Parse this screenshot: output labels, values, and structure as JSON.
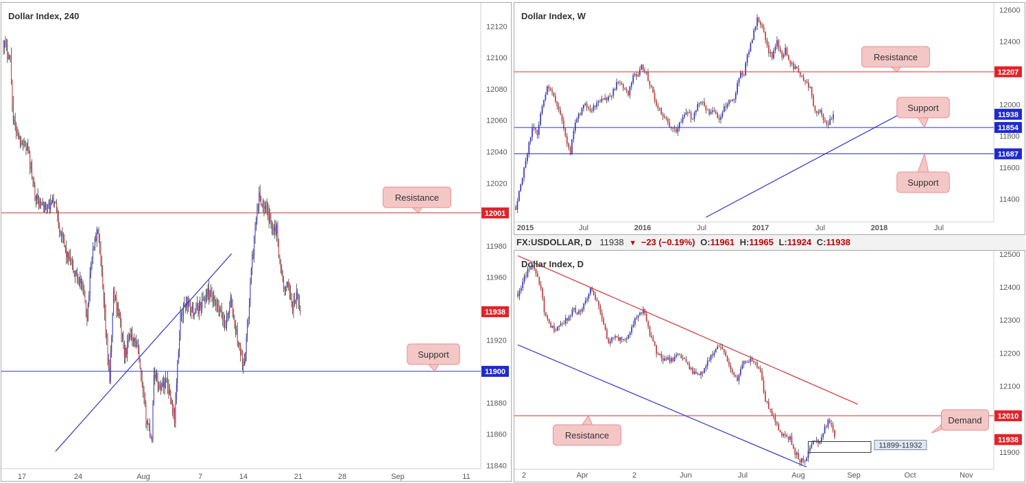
{
  "colors": {
    "bull": "#3232d2",
    "bear": "#d43131",
    "wick": "#333333",
    "resistance_line": "#d43131",
    "support_line": "#2b32c9",
    "tag_red": "#e0242a",
    "tag_blue": "#1f2acc",
    "callout_fill": "#f4c7c7",
    "callout_border": "#e88d8d",
    "axis_text": "#555555"
  },
  "infobar": {
    "symbol": "FX:USDOLLAR, D",
    "last": "11938",
    "change": "−23 (−0.19%)",
    "o_label": "O:",
    "o_value": "11961",
    "h_label": "H:",
    "h_value": "11965",
    "l_label": "L:",
    "l_value": "11924",
    "c_label": "C:",
    "c_value": "11938"
  },
  "chart_data": [
    {
      "id": "h4",
      "type": "candlestick",
      "title": "Dollar Index, 240",
      "ylim": [
        11838,
        12135
      ],
      "yticks": [
        12120,
        12100,
        12080,
        12060,
        12040,
        12020,
        11980,
        11960,
        11920,
        11880,
        11860,
        11840
      ],
      "xlabels": [
        "17",
        "24",
        "Aug",
        "7",
        "14",
        "21",
        "28",
        "Sep",
        "11"
      ],
      "bars": 165,
      "price_tags": [
        {
          "label": "12001",
          "value": 12001,
          "color": "red"
        },
        {
          "label": "11938",
          "value": 11938,
          "color": "red"
        },
        {
          "label": "11900",
          "value": 11900,
          "color": "blue"
        }
      ],
      "hlines": [
        {
          "value": 12001,
          "color": "red"
        },
        {
          "value": 11900,
          "color": "blue"
        }
      ],
      "trendlines": [
        {
          "color": "blue",
          "from": {
            "bar": 53,
            "value": 11849
          },
          "to": {
            "bar": 232,
            "value": 11975
          }
        }
      ],
      "callouts": [
        {
          "text": "Resistance",
          "value": 12001
        },
        {
          "text": "Support",
          "value": 11900
        }
      ],
      "path": [
        [
          0,
          12110
        ],
        [
          7,
          12100
        ],
        [
          10,
          12060
        ],
        [
          15,
          12050
        ],
        [
          21,
          12045
        ],
        [
          25,
          12040
        ],
        [
          30,
          12020
        ],
        [
          35,
          12008
        ],
        [
          45,
          12003
        ],
        [
          52,
          12010
        ],
        [
          56,
          11995
        ],
        [
          64,
          11975
        ],
        [
          70,
          11965
        ],
        [
          78,
          11958
        ],
        [
          82,
          11948
        ],
        [
          85,
          11935
        ],
        [
          90,
          11975
        ],
        [
          96,
          11990
        ],
        [
          100,
          11960
        ],
        [
          104,
          11925
        ],
        [
          108,
          11895
        ],
        [
          112,
          11950
        ],
        [
          118,
          11935
        ],
        [
          123,
          11910
        ],
        [
          130,
          11925
        ],
        [
          136,
          11915
        ],
        [
          140,
          11895
        ],
        [
          145,
          11870
        ],
        [
          151,
          11858
        ],
        [
          153,
          11900
        ],
        [
          159,
          11890
        ],
        [
          166,
          11895
        ],
        [
          171,
          11880
        ],
        [
          174,
          11870
        ],
        [
          180,
          11935
        ],
        [
          186,
          11945
        ],
        [
          192,
          11938
        ],
        [
          198,
          11940
        ],
        [
          208,
          11950
        ],
        [
          218,
          11940
        ],
        [
          226,
          11930
        ],
        [
          231,
          11945
        ],
        [
          235,
          11930
        ],
        [
          240,
          11915
        ],
        [
          244,
          11905
        ],
        [
          248,
          11925
        ],
        [
          252,
          11965
        ],
        [
          256,
          11990
        ],
        [
          260,
          12012
        ],
        [
          265,
          12005
        ],
        [
          272,
          11995
        ],
        [
          278,
          11990
        ],
        [
          282,
          11965
        ],
        [
          286,
          11950
        ],
        [
          290,
          11955
        ],
        [
          294,
          11940
        ],
        [
          298,
          11948
        ],
        [
          302,
          11938
        ]
      ]
    },
    {
      "id": "weekly",
      "type": "candlestick",
      "title": "Dollar Index, W",
      "ylim": [
        11255,
        12645
      ],
      "yticks": [
        12600,
        12400,
        12000,
        11800,
        11600,
        11400
      ],
      "xlabels": [
        "2015",
        "Jul",
        "2016",
        "Jul",
        "2017",
        "Jul",
        "2018",
        "Jul"
      ],
      "bars": 165,
      "price_tags": [
        {
          "label": "12207",
          "value": 12207,
          "color": "red"
        },
        {
          "label": "11938",
          "value": 11938,
          "color": "blue"
        },
        {
          "label": "11854",
          "value": 11854,
          "color": "blue"
        },
        {
          "label": "11687",
          "value": 11687,
          "color": "blue"
        }
      ],
      "hlines": [
        {
          "value": 12207,
          "color": "red"
        },
        {
          "value": 11854,
          "color": "blue"
        },
        {
          "value": 11687,
          "color": "blue"
        }
      ],
      "trendlines": [
        {
          "color": "blue",
          "from": {
            "bar": 115,
            "value": 11285
          },
          "to": {
            "bar": 234,
            "value": 11948
          }
        }
      ],
      "callouts": [
        {
          "text": "Resistance",
          "value": 12207
        },
        {
          "text": "Support",
          "value": 11854
        },
        {
          "text": "Support",
          "value": 11687
        }
      ],
      "path": [
        [
          0,
          11350
        ],
        [
          2,
          11450
        ],
        [
          5,
          11600
        ],
        [
          8,
          11750
        ],
        [
          10,
          11860
        ],
        [
          13,
          11820
        ],
        [
          16,
          12000
        ],
        [
          19,
          12100
        ],
        [
          22,
          12080
        ],
        [
          25,
          11980
        ],
        [
          28,
          11900
        ],
        [
          31,
          11750
        ],
        [
          33,
          11700
        ],
        [
          36,
          11900
        ],
        [
          39,
          11950
        ],
        [
          42,
          12000
        ],
        [
          45,
          11950
        ],
        [
          48,
          12000
        ],
        [
          52,
          12020
        ],
        [
          55,
          12030
        ],
        [
          58,
          12060
        ],
        [
          62,
          12150
        ],
        [
          65,
          12100
        ],
        [
          68,
          12060
        ],
        [
          71,
          12200
        ],
        [
          74,
          12180
        ],
        [
          76,
          12250
        ],
        [
          79,
          12200
        ],
        [
          82,
          12100
        ],
        [
          85,
          12000
        ],
        [
          88,
          11950
        ],
        [
          91,
          11900
        ],
        [
          94,
          11850
        ],
        [
          97,
          11820
        ],
        [
          100,
          11900
        ],
        [
          104,
          11950
        ],
        [
          107,
          11900
        ],
        [
          110,
          12000
        ],
        [
          113,
          12000
        ],
        [
          116,
          11950
        ],
        [
          119,
          11960
        ],
        [
          123,
          11900
        ],
        [
          126,
          11980
        ],
        [
          129,
          12030
        ],
        [
          132,
          12020
        ],
        [
          135,
          12180
        ],
        [
          138,
          12200
        ],
        [
          140,
          12300
        ],
        [
          143,
          12420
        ],
        [
          146,
          12550
        ],
        [
          149,
          12500
        ],
        [
          152,
          12360
        ],
        [
          155,
          12300
        ],
        [
          158,
          12400
        ],
        [
          161,
          12300
        ],
        [
          163,
          12350
        ],
        [
          166,
          12260
        ],
        [
          169,
          12230
        ],
        [
          172,
          12200
        ],
        [
          175,
          12150
        ],
        [
          178,
          12100
        ],
        [
          181,
          11960
        ],
        [
          184,
          11950
        ],
        [
          187,
          11880
        ],
        [
          189,
          11880
        ],
        [
          192,
          11938
        ]
      ]
    },
    {
      "id": "daily",
      "type": "candlestick",
      "title": "Dollar Index, D",
      "ylim": [
        11848,
        12510
      ],
      "yticks": [
        12500,
        12400,
        12300,
        12200,
        12100,
        11900
      ],
      "xlabels": [
        "2",
        "Apr",
        "2",
        "Jun",
        "Jul",
        "Aug",
        "Sep",
        "Oct",
        "Nov"
      ],
      "bars": 165,
      "price_tags": [
        {
          "label": "12010",
          "value": 12010,
          "color": "red"
        },
        {
          "label": "11938",
          "value": 11938,
          "color": "red"
        }
      ],
      "hlines": [
        {
          "value": 12010,
          "color": "red"
        }
      ],
      "trendlines": [
        {
          "color": "red",
          "from": {
            "bar": 0,
            "value": 12495
          },
          "to": {
            "bar": 206,
            "value": 12045
          }
        },
        {
          "color": "blue",
          "from": {
            "bar": 0,
            "value": 12225
          },
          "to": {
            "bar": 175,
            "value": 11855
          }
        }
      ],
      "zones": [
        {
          "label": "11899-11932",
          "low": 11899,
          "high": 11932,
          "from_bar": 176,
          "to_bar": 214
        }
      ],
      "callouts": [
        {
          "text": "Resistance",
          "value": 12010
        },
        {
          "text": "Demand",
          "value": 11932
        }
      ],
      "path": [
        [
          0,
          12380
        ],
        [
          2,
          12400
        ],
        [
          5,
          12440
        ],
        [
          9,
          12470
        ],
        [
          12,
          12430
        ],
        [
          14,
          12400
        ],
        [
          16,
          12320
        ],
        [
          19,
          12290
        ],
        [
          22,
          12270
        ],
        [
          25,
          12280
        ],
        [
          29,
          12300
        ],
        [
          34,
          12330
        ],
        [
          38,
          12320
        ],
        [
          44,
          12390
        ],
        [
          48,
          12360
        ],
        [
          51,
          12300
        ],
        [
          55,
          12230
        ],
        [
          59,
          12250
        ],
        [
          63,
          12240
        ],
        [
          67,
          12250
        ],
        [
          70,
          12290
        ],
        [
          73,
          12320
        ],
        [
          76,
          12330
        ],
        [
          80,
          12260
        ],
        [
          84,
          12200
        ],
        [
          88,
          12180
        ],
        [
          93,
          12180
        ],
        [
          98,
          12200
        ],
        [
          102,
          12170
        ],
        [
          106,
          12140
        ],
        [
          110,
          12130
        ],
        [
          114,
          12160
        ],
        [
          118,
          12200
        ],
        [
          122,
          12220
        ],
        [
          126,
          12190
        ],
        [
          129,
          12150
        ],
        [
          133,
          12120
        ],
        [
          136,
          12170
        ],
        [
          140,
          12180
        ],
        [
          144,
          12170
        ],
        [
          147,
          12140
        ],
        [
          150,
          12060
        ],
        [
          153,
          12020
        ],
        [
          156,
          11990
        ],
        [
          159,
          11960
        ],
        [
          162,
          11950
        ],
        [
          165,
          11940
        ],
        [
          168,
          11900
        ],
        [
          170,
          11880
        ],
        [
          173,
          11870
        ],
        [
          176,
          11900
        ],
        [
          179,
          11940
        ],
        [
          182,
          11930
        ],
        [
          185,
          11960
        ],
        [
          188,
          11990
        ],
        [
          190,
          11985
        ],
        [
          192,
          11938
        ]
      ]
    }
  ]
}
